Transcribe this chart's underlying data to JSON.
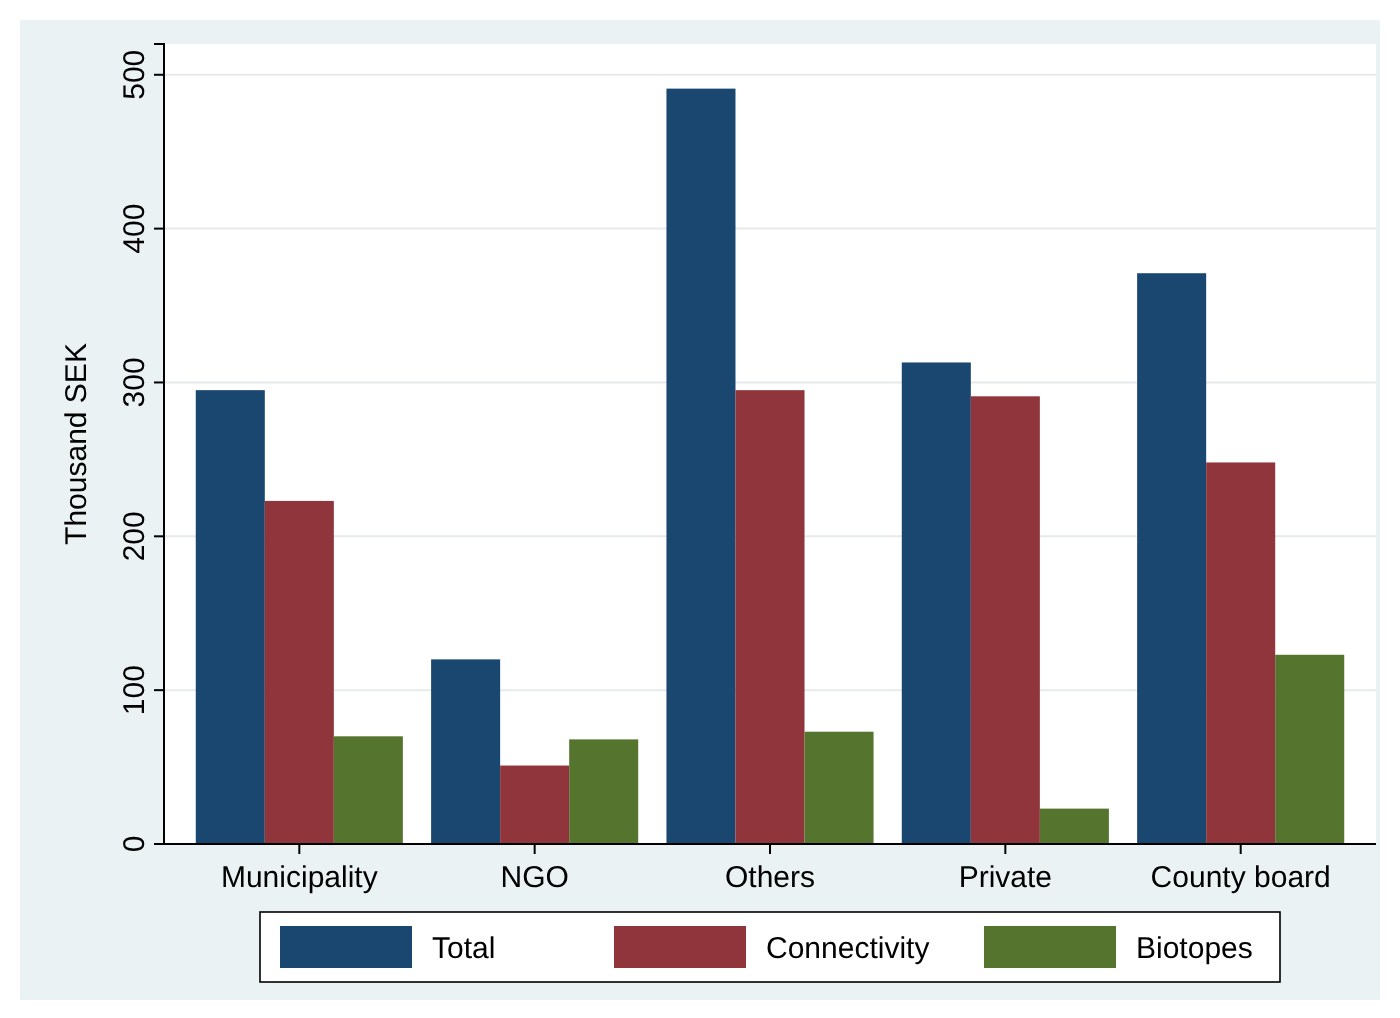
{
  "chart_data": {
    "type": "bar",
    "ylabel": "Thousand SEK",
    "categories": [
      "Municipality",
      "NGO",
      "Others",
      "Private",
      "County board"
    ],
    "series": [
      {
        "name": "Total",
        "color": "#1a476f",
        "values": [
          295,
          120,
          491,
          313,
          371
        ]
      },
      {
        "name": "Connectivity",
        "color": "#90353b",
        "values": [
          223,
          51,
          295,
          291,
          248
        ]
      },
      {
        "name": "Biotopes",
        "color": "#55752f",
        "values": [
          70,
          68,
          73,
          23,
          123
        ]
      }
    ],
    "ylim": [
      0,
      520
    ],
    "yticks": [
      0,
      100,
      200,
      300,
      400,
      500
    ],
    "grid": "y",
    "legend": "bottom"
  }
}
